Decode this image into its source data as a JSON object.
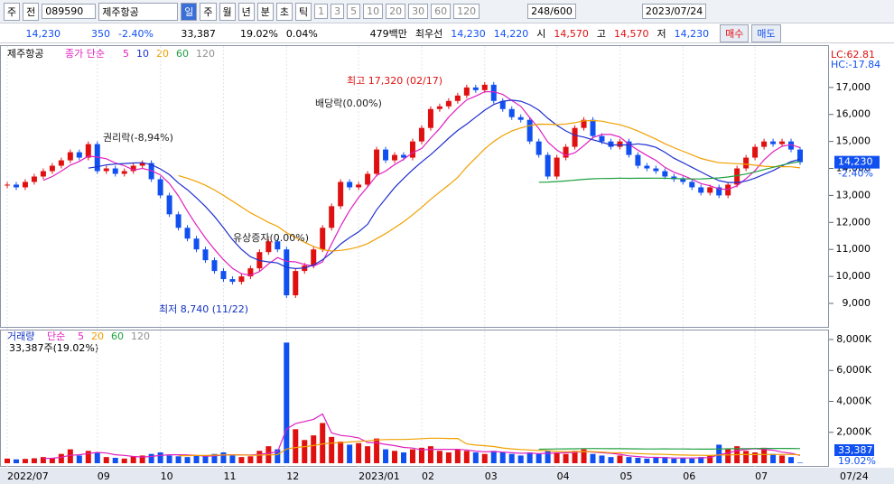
{
  "toolbar": {
    "row1": [
      "주",
      "전",
      "089590",
      "제주항공",
      "일",
      "주",
      "월",
      "년",
      "분",
      "초",
      "틱",
      "1",
      "3",
      "5",
      "10",
      "20",
      "30",
      "60",
      "120",
      "248/600",
      "2023/07/24"
    ],
    "row2": [
      "14,230",
      "350",
      "-2.40%",
      "33,387",
      "19.02%",
      "0.04%",
      "479백만",
      "최우선",
      "14,230",
      "14,220",
      "시",
      "14,570",
      "고",
      "14,570",
      "저",
      "14,230",
      "매수",
      "매도"
    ]
  },
  "chart_data": {
    "type": "candlestick",
    "title": "제주항공",
    "ma_label": "종가 단순",
    "ma_periods": [
      5,
      10,
      20,
      60,
      120
    ],
    "ma_colors": [
      "#e020c0",
      "#2030d0",
      "#f0a000",
      "#20a040",
      "#909090"
    ],
    "up_color": "#e01010",
    "down_color": "#1050f0",
    "categories": [
      "2022/07",
      null,
      null,
      null,
      null,
      null,
      null,
      null,
      null,
      null,
      "09",
      null,
      null,
      null,
      null,
      null,
      null,
      "10",
      null,
      null,
      null,
      null,
      null,
      null,
      "11",
      null,
      null,
      null,
      null,
      null,
      null,
      "12",
      null,
      null,
      null,
      null,
      null,
      null,
      null,
      "2023/01",
      null,
      null,
      null,
      null,
      null,
      null,
      "02",
      null,
      null,
      null,
      null,
      null,
      null,
      "03",
      null,
      null,
      null,
      null,
      null,
      null,
      null,
      "04",
      null,
      null,
      null,
      null,
      null,
      null,
      "05",
      null,
      null,
      null,
      null,
      null,
      null,
      "06",
      null,
      null,
      null,
      null,
      null,
      null,
      null,
      "07",
      null,
      null,
      null,
      null,
      null
    ],
    "close": [
      13400,
      13300,
      13500,
      13700,
      13900,
      14100,
      14300,
      14600,
      14400,
      14900,
      13900,
      14000,
      13800,
      13900,
      14100,
      14200,
      13600,
      13000,
      12300,
      11800,
      11400,
      11000,
      10600,
      10200,
      9900,
      9800,
      10000,
      10300,
      10900,
      11300,
      11000,
      9300,
      10200,
      10400,
      11000,
      11800,
      12600,
      13500,
      13300,
      13400,
      13800,
      14700,
      14300,
      14500,
      14400,
      15000,
      15500,
      16200,
      16300,
      16500,
      16700,
      17000,
      16900,
      17100,
      16500,
      16200,
      15900,
      15800,
      15000,
      14500,
      13700,
      14400,
      14800,
      15500,
      15800,
      15200,
      15000,
      14800,
      15000,
      14500,
      14100,
      14000,
      13900,
      13700,
      13600,
      13500,
      13300,
      13100,
      13300,
      13000,
      13400,
      14000,
      14400,
      14800,
      15000,
      14900,
      15000,
      14700,
      14230
    ],
    "ylim": [
      8130,
      18500
    ],
    "yticks": [
      {
        "value": 9000,
        "label": "9,000"
      },
      {
        "value": 10000,
        "label": "10,000"
      },
      {
        "value": 11000,
        "label": "11,000"
      },
      {
        "value": 12000,
        "label": "12,000"
      },
      {
        "value": 13000,
        "label": "13,000"
      },
      {
        "value": 14000,
        "label": "14,000"
      },
      {
        "value": 15000,
        "label": "15,000"
      },
      {
        "value": 16000,
        "label": "16,000"
      },
      {
        "value": 17000,
        "label": "17,000"
      }
    ],
    "last_label": "14,230",
    "change_label": "-2.40%",
    "lc_label": "LC:62.81",
    "hc_label": "HC:-17.84",
    "x_end_label": "07/24",
    "annotations": [
      {
        "text": "최고 17,320 (02/17)",
        "color": "#e01010"
      },
      {
        "text": "최저 8,740 (11/22)",
        "color": "#1030c0"
      },
      {
        "text": "권리락(-8,94%)",
        "color": "#202020"
      },
      {
        "text": "배당락(0.00%)",
        "color": "#202020"
      },
      {
        "text": "유상증자(0.00%)",
        "color": "#202020"
      }
    ],
    "volume": {
      "label": "거래량",
      "ma_label": "단순",
      "ma_periods": [
        5,
        20,
        60,
        120
      ],
      "ma_colors": [
        "#e020c0",
        "#f0a000",
        "#20a040",
        "#909090"
      ],
      "summary": "33,387주(19.02%)",
      "last_label": "33,387",
      "ratio_label": "19.02%",
      "values": [
        300,
        250,
        280,
        320,
        400,
        350,
        600,
        900,
        500,
        800,
        700,
        400,
        350,
        300,
        450,
        500,
        600,
        700,
        500,
        450,
        400,
        500,
        450,
        600,
        700,
        500,
        400,
        450,
        800,
        1100,
        900,
        7800,
        2200,
        1500,
        1800,
        2600,
        1700,
        1400,
        1200,
        1300,
        1100,
        1600,
        900,
        800,
        700,
        900,
        1000,
        1100,
        800,
        700,
        900,
        800,
        700,
        600,
        800,
        700,
        600,
        500,
        700,
        600,
        800,
        700,
        600,
        800,
        900,
        600,
        500,
        400,
        500,
        400,
        350,
        300,
        350,
        400,
        300,
        350,
        300,
        400,
        500,
        1200,
        900,
        1100,
        800,
        700,
        1000,
        600,
        500,
        400,
        33.387
      ],
      "ylim": [
        0,
        8640
      ],
      "yticks": [
        {
          "value": 2000,
          "label": "2,000K"
        },
        {
          "value": 4000,
          "label": "4,000K"
        },
        {
          "value": 6000,
          "label": "6,000K"
        },
        {
          "value": 8000,
          "label": "8,000K"
        }
      ]
    }
  }
}
